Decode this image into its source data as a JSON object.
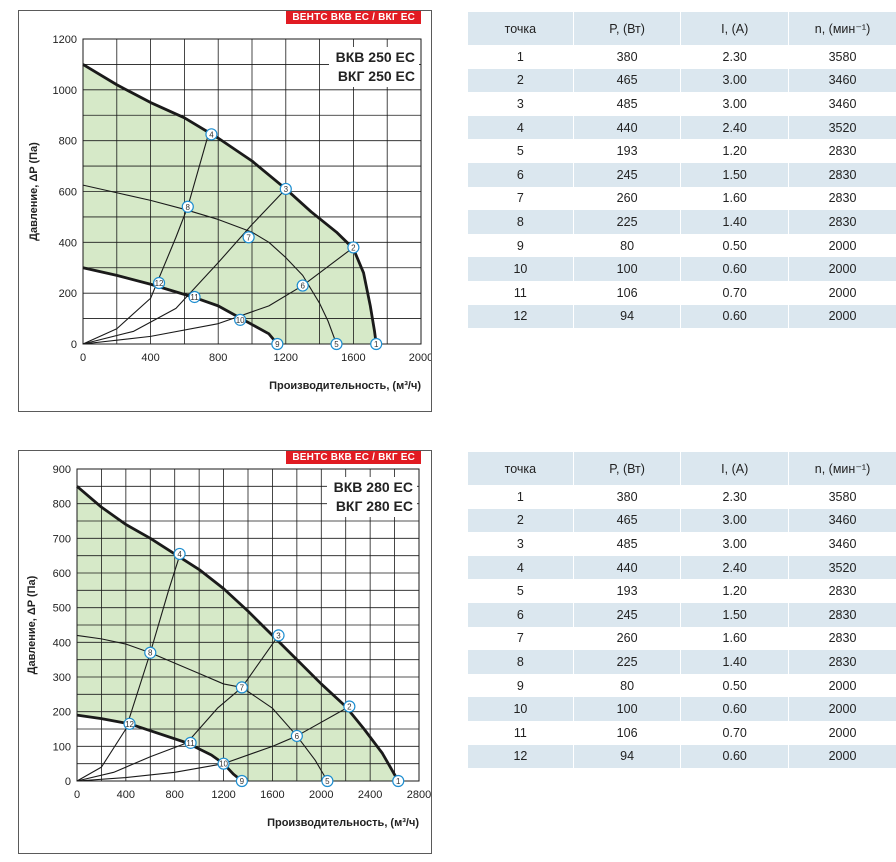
{
  "badge": "ВЕНТС ВКВ ЕС / ВКГ ЕС",
  "charts": [
    {
      "model_lines": [
        "ВКВ 250 ЕС",
        "ВКГ 250 ЕС"
      ],
      "ylabel": "Давление, ΔP (Па)",
      "xlabel": "Производительность, (м³/ч)"
    },
    {
      "model_lines": [
        "ВКВ 280 ЕС",
        "ВКГ 280 ЕС"
      ],
      "ylabel": "Давление, ΔP (Па)",
      "xlabel": "Производительность, (м³/ч)"
    }
  ],
  "colors": {
    "fill": "#d6e9c8",
    "grid": "#1a1a1a",
    "curve": "#1a1a1a",
    "marker_stroke": "#1e8ed0",
    "accent": "#e11b22",
    "table_band": "#dbe7ef"
  },
  "chart_data": [
    {
      "type": "line",
      "xlim": [
        0,
        2000
      ],
      "ylim": [
        0,
        1200
      ],
      "xticks": [
        0,
        400,
        800,
        1200,
        1600,
        2000
      ],
      "yticks": [
        0,
        200,
        400,
        600,
        800,
        1000,
        1200
      ],
      "fill_region": true,
      "series": [
        {
          "role": "max",
          "points": [
            [
              0,
              1100
            ],
            [
              200,
              1020
            ],
            [
              400,
              950
            ],
            [
              600,
              890
            ],
            [
              800,
              810
            ],
            [
              1000,
              720
            ],
            [
              1200,
              610
            ],
            [
              1350,
              520
            ],
            [
              1500,
              440
            ],
            [
              1600,
              375
            ],
            [
              1660,
              280
            ],
            [
              1700,
              150
            ],
            [
              1725,
              50
            ],
            [
              1735,
              0
            ]
          ]
        },
        {
          "role": "mid",
          "points": [
            [
              0,
              625
            ],
            [
              200,
              595
            ],
            [
              400,
              565
            ],
            [
              600,
              530
            ],
            [
              800,
              490
            ],
            [
              1000,
              440
            ],
            [
              1100,
              400
            ],
            [
              1200,
              340
            ],
            [
              1300,
              270
            ],
            [
              1400,
              160
            ],
            [
              1450,
              90
            ],
            [
              1500,
              0
            ]
          ]
        },
        {
          "role": "min",
          "points": [
            [
              0,
              300
            ],
            [
              200,
              270
            ],
            [
              400,
              235
            ],
            [
              650,
              185
            ],
            [
              800,
              150
            ],
            [
              950,
              95
            ],
            [
              1100,
              40
            ],
            [
              1150,
              0
            ]
          ]
        },
        {
          "role": "op",
          "points": [
            [
              0,
              0
            ],
            [
              200,
              60
            ],
            [
              400,
              180
            ],
            [
              550,
              420
            ],
            [
              620,
              540
            ],
            [
              740,
              820
            ]
          ]
        },
        {
          "role": "op",
          "points": [
            [
              0,
              0
            ],
            [
              300,
              50
            ],
            [
              550,
              140
            ],
            [
              800,
              320
            ],
            [
              1000,
              470
            ],
            [
              1200,
              610
            ]
          ]
        },
        {
          "role": "op",
          "points": [
            [
              0,
              0
            ],
            [
              400,
              30
            ],
            [
              800,
              80
            ],
            [
              1100,
              150
            ],
            [
              1300,
              230
            ],
            [
              1600,
              380
            ]
          ]
        }
      ],
      "points": [
        {
          "label": "1",
          "x": 1735,
          "y": 0
        },
        {
          "label": "2",
          "x": 1600,
          "y": 380
        },
        {
          "label": "3",
          "x": 1200,
          "y": 610
        },
        {
          "label": "4",
          "x": 760,
          "y": 825
        },
        {
          "label": "5",
          "x": 1500,
          "y": 0
        },
        {
          "label": "6",
          "x": 1300,
          "y": 230
        },
        {
          "label": "7",
          "x": 980,
          "y": 420
        },
        {
          "label": "8",
          "x": 620,
          "y": 540
        },
        {
          "label": "9",
          "x": 1150,
          "y": 0
        },
        {
          "label": "10",
          "x": 930,
          "y": 95
        },
        {
          "label": "11",
          "x": 660,
          "y": 185
        },
        {
          "label": "12",
          "x": 450,
          "y": 240
        }
      ]
    },
    {
      "type": "line",
      "xlim": [
        0,
        2800
      ],
      "ylim": [
        0,
        900
      ],
      "xticks": [
        0,
        400,
        800,
        1200,
        1600,
        2000,
        2400,
        2800
      ],
      "yticks": [
        0,
        100,
        200,
        300,
        400,
        500,
        600,
        700,
        800,
        900
      ],
      "fill_region": true,
      "series": [
        {
          "role": "max",
          "points": [
            [
              0,
              850
            ],
            [
              200,
              790
            ],
            [
              400,
              740
            ],
            [
              600,
              700
            ],
            [
              800,
              655
            ],
            [
              1000,
              610
            ],
            [
              1200,
              555
            ],
            [
              1400,
              490
            ],
            [
              1600,
              420
            ],
            [
              1800,
              350
            ],
            [
              2000,
              280
            ],
            [
              2200,
              215
            ],
            [
              2350,
              150
            ],
            [
              2500,
              80
            ],
            [
              2630,
              0
            ]
          ]
        },
        {
          "role": "mid",
          "points": [
            [
              0,
              420
            ],
            [
              200,
              410
            ],
            [
              400,
              395
            ],
            [
              600,
              370
            ],
            [
              800,
              340
            ],
            [
              1000,
              310
            ],
            [
              1200,
              280
            ],
            [
              1350,
              270
            ],
            [
              1600,
              210
            ],
            [
              1800,
              130
            ],
            [
              1950,
              60
            ],
            [
              2050,
              0
            ]
          ]
        },
        {
          "role": "min",
          "points": [
            [
              0,
              190
            ],
            [
              200,
              180
            ],
            [
              430,
              165
            ],
            [
              600,
              145
            ],
            [
              900,
              110
            ],
            [
              1100,
              75
            ],
            [
              1200,
              50
            ],
            [
              1280,
              20
            ],
            [
              1350,
              0
            ]
          ]
        },
        {
          "role": "op",
          "points": [
            [
              0,
              0
            ],
            [
              200,
              40
            ],
            [
              400,
              150
            ],
            [
              600,
              370
            ],
            [
              750,
              550
            ],
            [
              840,
              650
            ]
          ]
        },
        {
          "role": "op",
          "points": [
            [
              0,
              0
            ],
            [
              300,
              25
            ],
            [
              600,
              70
            ],
            [
              900,
              110
            ],
            [
              1150,
              210
            ],
            [
              1350,
              270
            ],
            [
              1650,
              420
            ]
          ]
        },
        {
          "role": "op",
          "points": [
            [
              0,
              0
            ],
            [
              400,
              10
            ],
            [
              800,
              25
            ],
            [
              1200,
              50
            ],
            [
              1600,
              100
            ],
            [
              1800,
              130
            ],
            [
              2230,
              215
            ]
          ]
        }
      ],
      "points": [
        {
          "label": "1",
          "x": 2630,
          "y": 0
        },
        {
          "label": "2",
          "x": 2230,
          "y": 215
        },
        {
          "label": "3",
          "x": 1650,
          "y": 420
        },
        {
          "label": "4",
          "x": 840,
          "y": 655
        },
        {
          "label": "5",
          "x": 2050,
          "y": 0
        },
        {
          "label": "6",
          "x": 1800,
          "y": 130
        },
        {
          "label": "7",
          "x": 1350,
          "y": 270
        },
        {
          "label": "8",
          "x": 600,
          "y": 370
        },
        {
          "label": "9",
          "x": 1350,
          "y": 0
        },
        {
          "label": "10",
          "x": 1200,
          "y": 50
        },
        {
          "label": "11",
          "x": 930,
          "y": 110
        },
        {
          "label": "12",
          "x": 430,
          "y": 165
        }
      ]
    },
    {
      "type": "table",
      "columns": [
        "точка",
        "P, (Вт)",
        "I, (А)",
        "n, (мин⁻¹)"
      ],
      "rows": [
        [
          "1",
          "380",
          "2.30",
          "3580"
        ],
        [
          "2",
          "465",
          "3.00",
          "3460"
        ],
        [
          "3",
          "485",
          "3.00",
          "3460"
        ],
        [
          "4",
          "440",
          "2.40",
          "3520"
        ],
        [
          "5",
          "193",
          "1.20",
          "2830"
        ],
        [
          "6",
          "245",
          "1.50",
          "2830"
        ],
        [
          "7",
          "260",
          "1.60",
          "2830"
        ],
        [
          "8",
          "225",
          "1.40",
          "2830"
        ],
        [
          "9",
          "80",
          "0.50",
          "2000"
        ],
        [
          "10",
          "100",
          "0.60",
          "2000"
        ],
        [
          "11",
          "106",
          "0.70",
          "2000"
        ],
        [
          "12",
          "94",
          "0.60",
          "2000"
        ]
      ]
    },
    {
      "type": "table",
      "columns": [
        "точка",
        "P, (Вт)",
        "I, (А)",
        "n, (мин⁻¹)"
      ],
      "rows": [
        [
          "1",
          "380",
          "2.30",
          "3580"
        ],
        [
          "2",
          "465",
          "3.00",
          "3460"
        ],
        [
          "3",
          "485",
          "3.00",
          "3460"
        ],
        [
          "4",
          "440",
          "2.40",
          "3520"
        ],
        [
          "5",
          "193",
          "1.20",
          "2830"
        ],
        [
          "6",
          "245",
          "1.50",
          "2830"
        ],
        [
          "7",
          "260",
          "1.60",
          "2830"
        ],
        [
          "8",
          "225",
          "1.40",
          "2830"
        ],
        [
          "9",
          "80",
          "0.50",
          "2000"
        ],
        [
          "10",
          "100",
          "0.60",
          "2000"
        ],
        [
          "11",
          "106",
          "0.70",
          "2000"
        ],
        [
          "12",
          "94",
          "0.60",
          "2000"
        ]
      ]
    }
  ]
}
